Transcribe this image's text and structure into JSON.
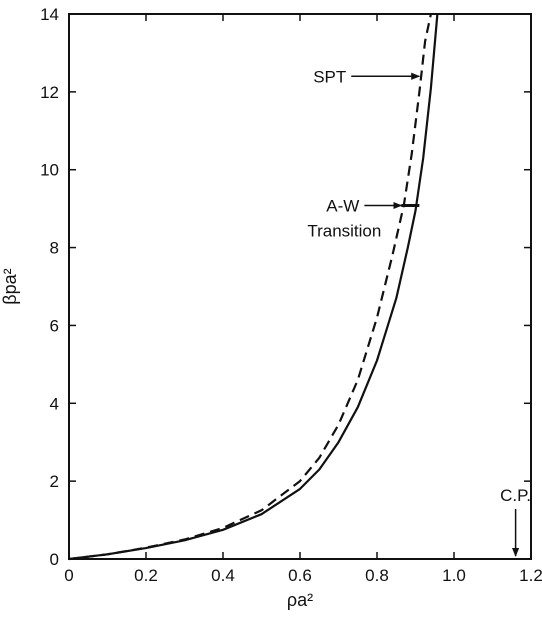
{
  "chart_data": {
    "type": "line",
    "title": "",
    "xlabel": "ρa²",
    "ylabel": "βpa²",
    "xlim": [
      0,
      1.2
    ],
    "ylim": [
      0,
      14
    ],
    "x_ticks": [
      "0",
      "0.2",
      "0.4",
      "0.6",
      "0.8",
      "1.0",
      "1.2"
    ],
    "y_ticks": [
      "0",
      "2",
      "4",
      "6",
      "8",
      "10",
      "12",
      "14"
    ],
    "grid": false,
    "series": [
      {
        "style": "solid",
        "x": [
          0,
          0.1,
          0.2,
          0.3,
          0.4,
          0.5,
          0.6,
          0.65,
          0.7,
          0.75,
          0.8,
          0.85,
          0.88,
          0.9,
          0.92,
          0.94,
          0.957
        ],
        "y": [
          0,
          0.12,
          0.28,
          0.48,
          0.75,
          1.15,
          1.8,
          2.3,
          3.0,
          3.9,
          5.1,
          6.7,
          8.0,
          8.95,
          10.3,
          12.1,
          14.0
        ]
      },
      {
        "style": "dashed",
        "x": [
          0,
          0.1,
          0.2,
          0.3,
          0.4,
          0.5,
          0.6,
          0.65,
          0.7,
          0.75,
          0.8,
          0.84,
          0.87,
          0.89,
          0.91,
          0.925,
          0.94
        ],
        "y": [
          0,
          0.12,
          0.29,
          0.5,
          0.8,
          1.25,
          2.0,
          2.6,
          3.45,
          4.6,
          6.2,
          7.8,
          9.1,
          10.4,
          12.0,
          13.3,
          14.0
        ]
      }
    ],
    "annotations": [
      {
        "text": "SPT",
        "point": [
          0.915,
          12.4
        ]
      },
      {
        "text": "A-W",
        "text2": "Transition",
        "point": [
          0.91,
          8.9
        ]
      },
      {
        "text": "C.P.",
        "point": [
          1.16,
          0
        ]
      }
    ]
  }
}
